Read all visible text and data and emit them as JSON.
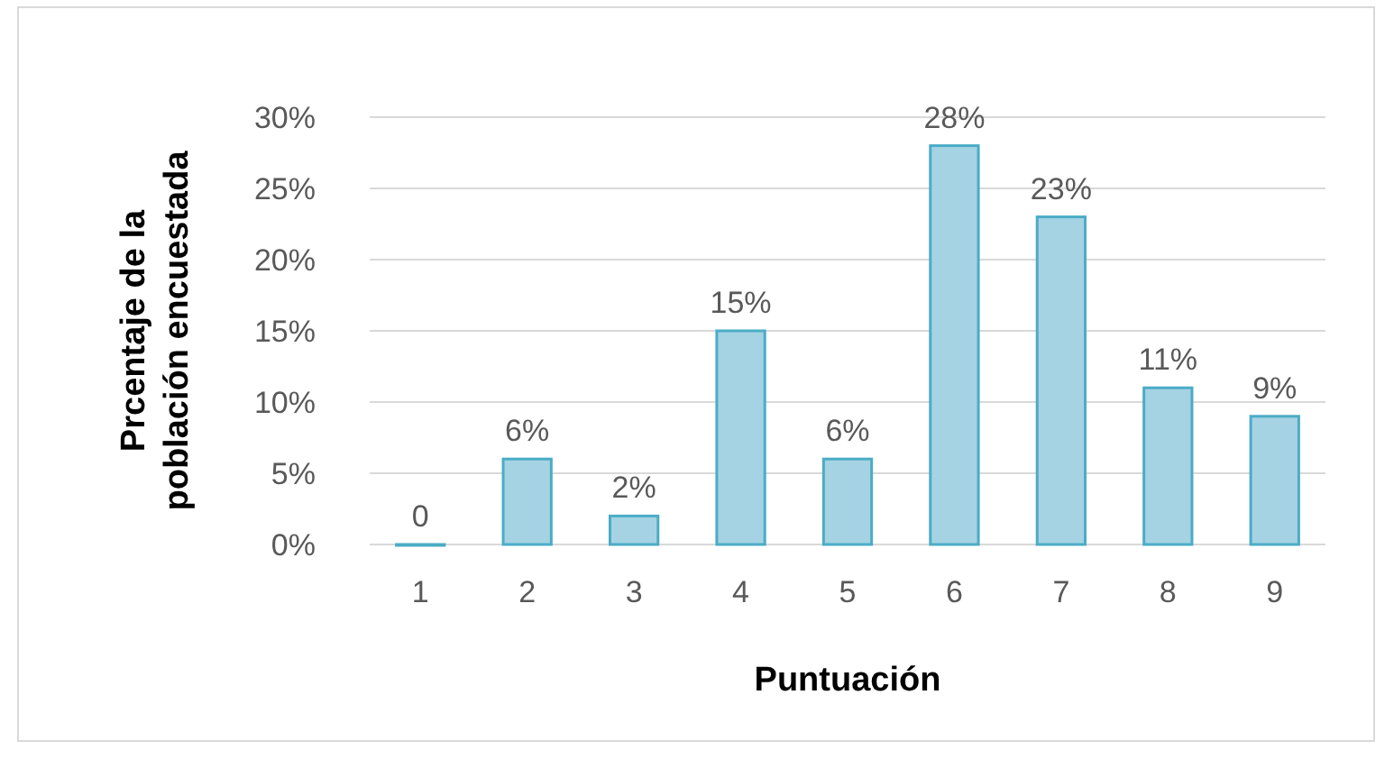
{
  "chart_data": {
    "type": "bar",
    "xlabel": "Puntuación",
    "ylabel": "Prcentaje de la población encuestada",
    "categories": [
      "1",
      "2",
      "3",
      "4",
      "5",
      "6",
      "7",
      "8",
      "9"
    ],
    "values": [
      0,
      6,
      2,
      15,
      6,
      28,
      23,
      11,
      9
    ],
    "value_labels": [
      "0",
      "6%",
      "2%",
      "15%",
      "6%",
      "28%",
      "23%",
      "11%",
      "9%"
    ],
    "color": "#a5d3e3",
    "ylim": [
      0,
      30
    ],
    "yticks": [
      {
        "value": 0,
        "label": "0%"
      },
      {
        "value": 5,
        "label": "5%"
      },
      {
        "value": 10,
        "label": "10%"
      },
      {
        "value": 15,
        "label": "15%"
      },
      {
        "value": 20,
        "label": "20%"
      },
      {
        "value": 25,
        "label": "25%"
      },
      {
        "value": 30,
        "label": "30%"
      }
    ],
    "grid": "y"
  }
}
